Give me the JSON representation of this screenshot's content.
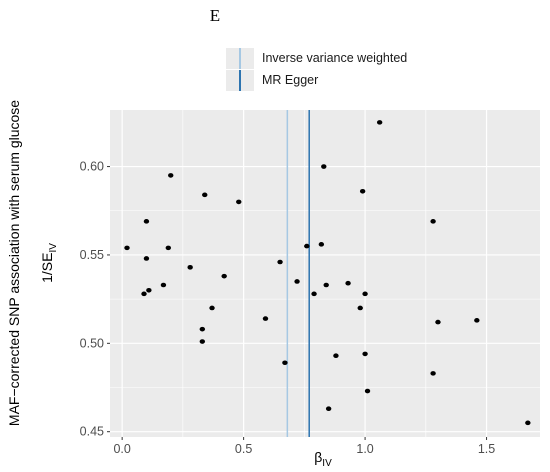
{
  "panel_letter": "E",
  "legend": {
    "items": [
      {
        "label": "Inverse variance weighted",
        "color": "#a6c8e3"
      },
      {
        "label": "MR Egger",
        "color": "#2d74b0"
      }
    ]
  },
  "axes": {
    "outer_ylabel": "MAF−corrected SNP association with serum glucose",
    "ylabel_main": "1/SE",
    "ylabel_sub": "IV",
    "xlabel_main": "β",
    "xlabel_sub": "IV"
  },
  "chart_data": {
    "type": "scatter",
    "xlim": [
      -0.05,
      1.72
    ],
    "ylim": [
      0.447,
      0.632
    ],
    "x_ticks": [
      0,
      0.5,
      1.0,
      1.5
    ],
    "x_tick_labels": [
      "0.0",
      "0.5",
      "1.0",
      "1.5"
    ],
    "y_ticks": [
      0.45,
      0.5,
      0.55,
      0.6
    ],
    "y_tick_labels": [
      "0.45",
      "0.50",
      "0.55",
      "0.60"
    ],
    "grid": true,
    "background": "#ebebeb",
    "point_color": "#000000",
    "vlines": [
      {
        "name": "Inverse variance weighted",
        "x": 0.68,
        "color": "#a6c8e3"
      },
      {
        "name": "MR Egger",
        "x": 0.77,
        "color": "#2d74b0"
      }
    ],
    "points": [
      [
        0.02,
        0.554
      ],
      [
        0.09,
        0.528
      ],
      [
        0.1,
        0.548
      ],
      [
        0.1,
        0.569
      ],
      [
        0.11,
        0.53
      ],
      [
        0.17,
        0.533
      ],
      [
        0.19,
        0.554
      ],
      [
        0.2,
        0.595
      ],
      [
        0.28,
        0.543
      ],
      [
        0.33,
        0.501
      ],
      [
        0.33,
        0.508
      ],
      [
        0.34,
        0.584
      ],
      [
        0.37,
        0.52
      ],
      [
        0.42,
        0.538
      ],
      [
        0.48,
        0.58
      ],
      [
        0.59,
        0.514
      ],
      [
        0.65,
        0.546
      ],
      [
        0.67,
        0.489
      ],
      [
        0.72,
        0.535
      ],
      [
        0.76,
        0.555
      ],
      [
        0.79,
        0.528
      ],
      [
        0.82,
        0.556
      ],
      [
        0.83,
        0.6
      ],
      [
        0.84,
        0.533
      ],
      [
        0.85,
        0.463
      ],
      [
        0.88,
        0.493
      ],
      [
        0.93,
        0.534
      ],
      [
        0.98,
        0.52
      ],
      [
        0.99,
        0.586
      ],
      [
        1.0,
        0.528
      ],
      [
        1.0,
        0.494
      ],
      [
        1.01,
        0.473
      ],
      [
        1.06,
        0.625
      ],
      [
        1.28,
        0.569
      ],
      [
        1.28,
        0.483
      ],
      [
        1.3,
        0.512
      ],
      [
        1.46,
        0.513
      ],
      [
        1.67,
        0.455
      ]
    ]
  }
}
